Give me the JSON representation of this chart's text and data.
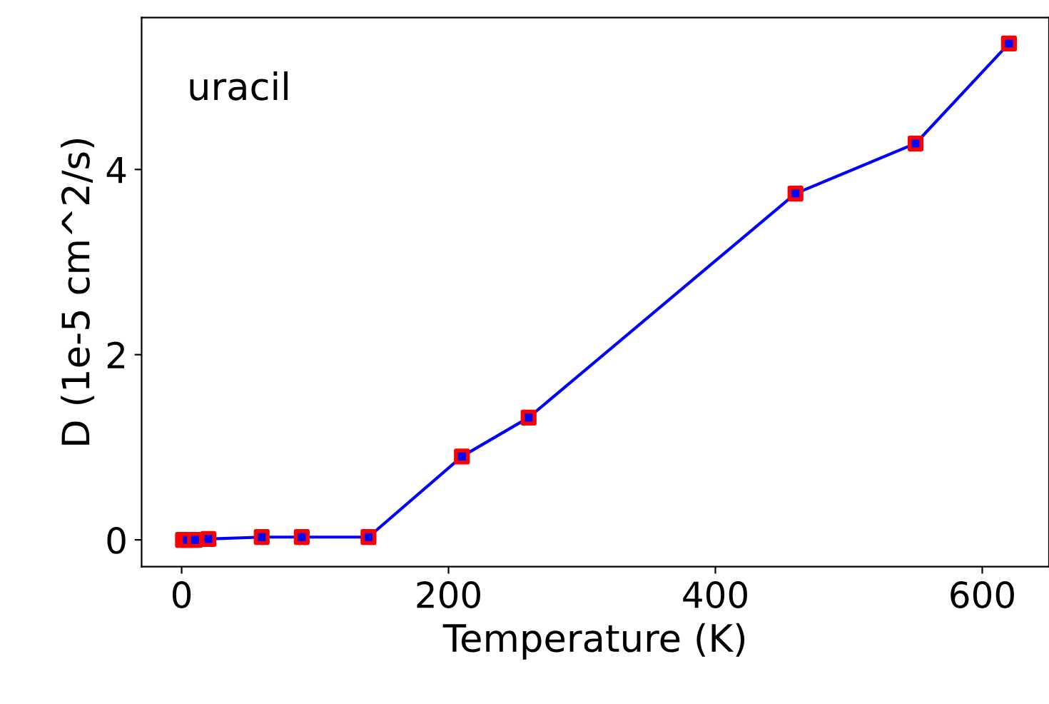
{
  "chart_data": {
    "type": "line",
    "xlabel": "Temperature (K)",
    "ylabel": "D (1e-5 cm^2/s)",
    "annotations": [
      "uracil"
    ],
    "x": [
      1,
      4,
      10,
      20,
      60,
      90,
      140,
      210,
      260,
      460,
      550,
      620
    ],
    "series": [
      {
        "color": "#0000ff",
        "colors": [
          "#ff0000",
          "#ff0000",
          "#ff0000",
          "#ff0000",
          "#ff0000",
          "#ff0000",
          "#ff0000",
          "#ff0000",
          "#ff0000",
          "#ff0000",
          "#ff0000",
          "#ff0000"
        ],
        "values": [
          0.0,
          0.0,
          0.0,
          0.01,
          0.03,
          0.03,
          0.03,
          0.9,
          1.32,
          3.74,
          4.28,
          5.36
        ]
      }
    ],
    "marker": "square",
    "line_style": "solid",
    "xlim": [
      -30,
      650
    ],
    "ylim": [
      -0.29,
      5.64
    ],
    "xticks": [
      0,
      200,
      400,
      600
    ],
    "yticks": [
      0,
      2,
      4
    ],
    "grid": false
  }
}
